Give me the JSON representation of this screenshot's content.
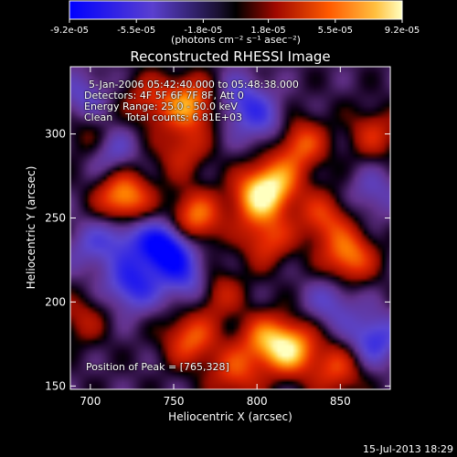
{
  "colorbar": {
    "tick_labels": [
      "-9.2e-05",
      "-5.5e-05",
      "-1.8e-05",
      "1.8e-05",
      "5.5e-05",
      "9.2e-05"
    ],
    "unit_label": "(photons cm⁻² s⁻¹ asec⁻²)",
    "range": [
      -9.2e-05,
      9.2e-05
    ],
    "palette": [
      "#0000ff",
      "#7060c0",
      "#000000",
      "#c01000",
      "#ff8000",
      "#ffff90"
    ]
  },
  "chart_data": {
    "type": "heatmap",
    "title": "Reconstructed RHESSI Image",
    "xlabel": "Heliocentric X (arcsec)",
    "ylabel": "Heliocentric Y (arcsec)",
    "xlim": [
      688,
      880
    ],
    "ylim": [
      148,
      340
    ],
    "x_ticks": [
      700,
      750,
      800,
      850
    ],
    "y_ticks": [
      150,
      200,
      250,
      300
    ],
    "peak": [
      765,
      328
    ],
    "sources": [
      {
        "x": 720,
        "y": 262,
        "value": 8.5e-05
      },
      {
        "x": 760,
        "y": 318,
        "value": 7.5e-05
      },
      {
        "x": 763,
        "y": 250,
        "value": 7e-05
      },
      {
        "x": 800,
        "y": 262,
        "value": 7.5e-05
      },
      {
        "x": 811,
        "y": 271,
        "value": 6.5e-05
      },
      {
        "x": 826,
        "y": 294,
        "value": 6e-05
      },
      {
        "x": 760,
        "y": 178,
        "value": 6e-05
      },
      {
        "x": 804,
        "y": 178,
        "value": 5.5e-05
      },
      {
        "x": 820,
        "y": 172,
        "value": 8.5e-05
      },
      {
        "x": 855,
        "y": 227,
        "value": 7e-05
      },
      {
        "x": 840,
        "y": 250,
        "value": 5e-05
      },
      {
        "x": 848,
        "y": 160,
        "value": 5e-05
      },
      {
        "x": 775,
        "y": 206,
        "value": 4.5e-05
      },
      {
        "x": 806,
        "y": 237,
        "value": 5e-05
      },
      {
        "x": 755,
        "y": 290,
        "value": 4e-05
      },
      {
        "x": 735,
        "y": 320,
        "value": 4e-05
      },
      {
        "x": 700,
        "y": 298,
        "value": 3e-05
      },
      {
        "x": 695,
        "y": 190,
        "value": 3e-05
      },
      {
        "x": 870,
        "y": 300,
        "value": 4e-05
      },
      {
        "x": 787,
        "y": 158,
        "value": 5e-05
      },
      {
        "x": 745,
        "y": 232,
        "value": -9.2e-05
      },
      {
        "x": 725,
        "y": 210,
        "value": -6e-05
      },
      {
        "x": 712,
        "y": 290,
        "value": -4e-05
      },
      {
        "x": 790,
        "y": 320,
        "value": -4.5e-05
      },
      {
        "x": 805,
        "y": 306,
        "value": -3.5e-05
      },
      {
        "x": 845,
        "y": 200,
        "value": -3.5e-05
      },
      {
        "x": 870,
        "y": 178,
        "value": -5.5e-05
      },
      {
        "x": 720,
        "y": 240,
        "value": -4e-05
      },
      {
        "x": 760,
        "y": 212,
        "value": -5e-05
      },
      {
        "x": 700,
        "y": 232,
        "value": -3e-05
      },
      {
        "x": 696,
        "y": 322,
        "value": -3.5e-05
      },
      {
        "x": 870,
        "y": 265,
        "value": -3e-05
      }
    ]
  },
  "overlay": {
    "time_range": "5-Jan-2006 05:42:40.000 to 05:48:38.000",
    "detectors": "Detectors: 4F 5F 6F 7F 8F, Att 0",
    "energy_range": "Energy Range: 25.0 - 50.0 keV",
    "clean_line": "Clean    Total counts: 6.81E+03",
    "peak_label": "Position of Peak = [765,328]"
  },
  "footer": {
    "timestamp": "15-Jul-2013 18:29"
  }
}
